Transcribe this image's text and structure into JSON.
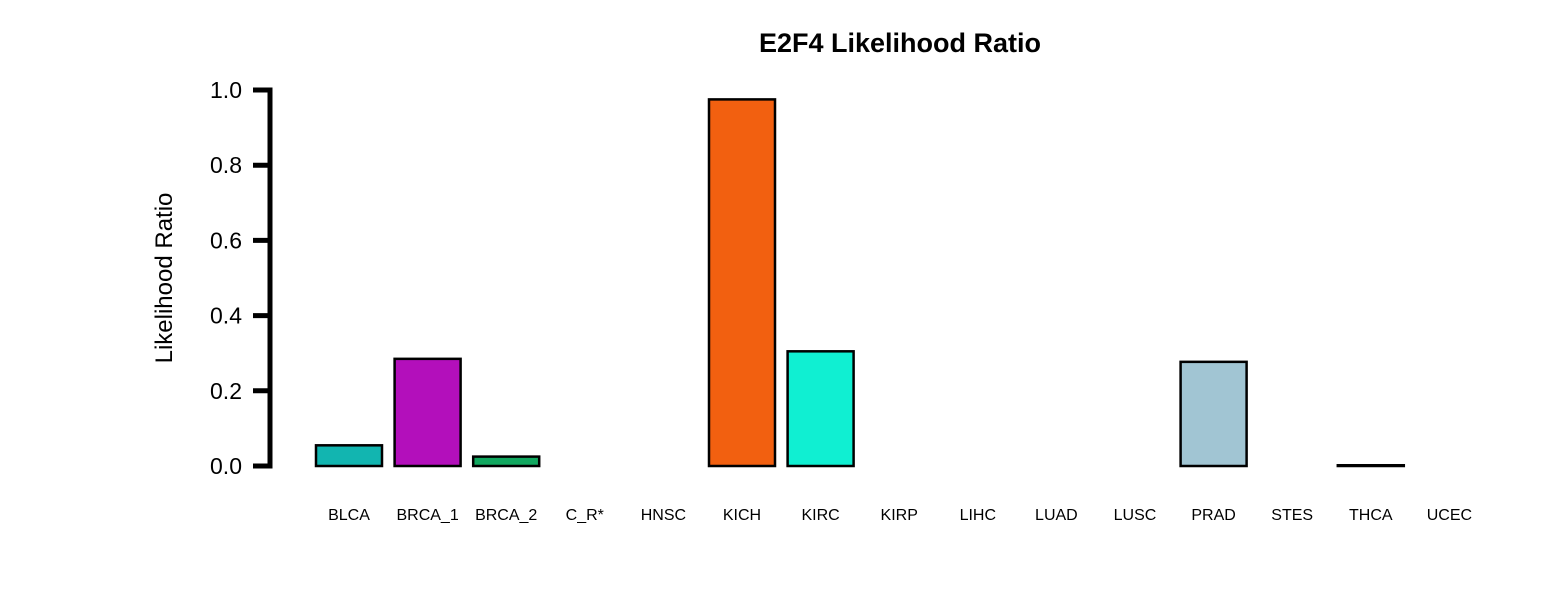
{
  "chart_data": {
    "type": "bar",
    "title": "E2F4 Likelihood Ratio",
    "xlabel": "",
    "ylabel": "Likelihood Ratio",
    "ylim": [
      0,
      1.0
    ],
    "yticks": [
      "0.0",
      "0.2",
      "0.4",
      "0.6",
      "0.8",
      "1.0"
    ],
    "categories": [
      "BLCA",
      "BRCA_1",
      "BRCA_2",
      "C_R*",
      "HNSC",
      "KICH",
      "KIRC",
      "KIRP",
      "LIHC",
      "LUAD",
      "LUSC",
      "PRAD",
      "STES",
      "THCA",
      "UCEC"
    ],
    "values": [
      0.055,
      0.285,
      0.025,
      0.0,
      0.0,
      0.975,
      0.305,
      0.0,
      0.0,
      0.0,
      0.0,
      0.277,
      0.0,
      0.002,
      0.0
    ],
    "colors": [
      "#12b5b0",
      "#b30fbb",
      "#12a860",
      "#000000",
      "#000000",
      "#f26010",
      "#10efd2",
      "#000000",
      "#000000",
      "#000000",
      "#000000",
      "#a1c5d3",
      "#000000",
      "#000000",
      "#000000"
    ],
    "grid": false,
    "legend": "none"
  }
}
